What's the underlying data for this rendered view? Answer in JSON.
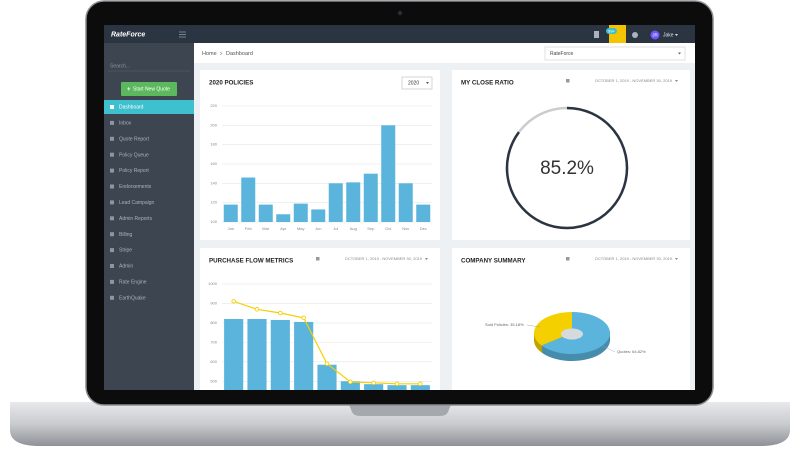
{
  "header": {
    "brand": "RateForce",
    "badge": "99+",
    "avatar": "JR",
    "user": "Jake"
  },
  "sidebar": {
    "search": "Search...",
    "button": "Start New Quote",
    "items": [
      "Dashboard",
      "Inbox",
      "Quote Report",
      "Policy Queue",
      "Policy Report",
      "Endorsements",
      "Lead Campaign",
      "Admin Reports",
      "Billing",
      "Stripe",
      "Admin",
      "Rate Engine",
      "EarthQuake"
    ]
  },
  "breadcrumb": {
    "home": "Home",
    "current": "Dashboard"
  },
  "agency_select": "RateForce",
  "chart_data": [
    {
      "type": "bar",
      "title": "2020 POLICIES",
      "filter": "2020",
      "categories": [
        "Jan",
        "Feb",
        "Mar",
        "Apr",
        "May",
        "Jun",
        "Jul",
        "Aug",
        "Sep",
        "Oct",
        "Nov",
        "Dec"
      ],
      "values": [
        118,
        146,
        118,
        108,
        119,
        113,
        140,
        141,
        150,
        200,
        140,
        118
      ],
      "color": "#5ab4dc",
      "ylim": [
        100,
        220
      ],
      "yticks": [
        100,
        120,
        140,
        160,
        180,
        200,
        220
      ],
      "grid": true
    },
    {
      "type": "ring",
      "title": "MY CLOSE RATIO",
      "date_range": "OCTOBER 1, 2019 - NOVEMBER 30, 2019",
      "value": 85.2,
      "value_label": "85.2%",
      "max": 100,
      "color": "#2b3542"
    },
    {
      "type": "bar-line",
      "title": "PURCHASE FLOW METRICS",
      "date_range": "OCTOBER 1, 2019 - NOVEMBER 30, 2019",
      "categories": [
        null,
        null,
        null,
        null,
        null,
        null,
        null,
        null,
        null
      ],
      "series": [
        {
          "mark": "bar",
          "color": "#5ab4dc",
          "values": [
            820,
            820,
            815,
            805,
            585,
            500,
            485,
            480,
            480
          ]
        },
        {
          "mark": "line",
          "color": "#f5d000",
          "values": [
            911,
            870,
            851,
            826,
            590,
            497,
            492,
            487,
            487
          ]
        }
      ],
      "ylim": [
        450,
        1000
      ],
      "yticks": [
        500,
        600,
        700,
        800,
        900,
        1000
      ],
      "grid": true
    },
    {
      "type": "pie",
      "title": "COMPANY SUMMARY",
      "date_range": "OCTOBER 1, 2019 - NOVEMBER 30, 2019",
      "values": [
        35.18,
        64.82
      ],
      "value_labels": [
        "Sold Policies: 35.18%",
        "Quotes: 64.82%"
      ],
      "colors": [
        "#f5d000",
        "#5ab4dc"
      ]
    }
  ]
}
